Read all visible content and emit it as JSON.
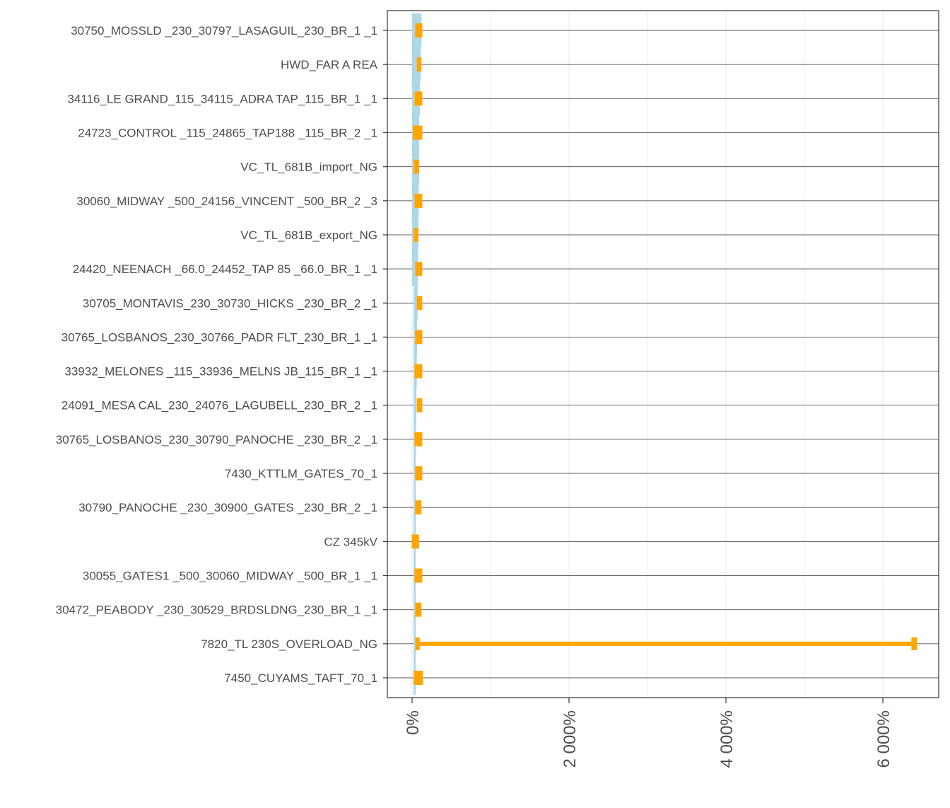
{
  "chart_data": {
    "type": "bar",
    "orientation": "horizontal",
    "style": "range-bars",
    "categories": [
      "30750_MOSSLD  _230_30797_LASAGUIL_230_BR_1 _1",
      "HWD_FAR A REA",
      "34116_LE GRAND_115_34115_ADRA TAP_115_BR_1 _1",
      "24723_CONTROL _115_24865_TAP188  _115_BR_2 _1",
      "VC_TL_681B_import_NG",
      "30060_MIDWAY  _500_24156_VINCENT _500_BR_2 _3",
      "VC_TL_681B_export_NG",
      "24420_NEENACH _66.0_24452_TAP 85  _66.0_BR_1 _1",
      "30705_MONTAVIS_230_30730_HICKS   _230_BR_2 _1",
      "30765_LOSBANOS_230_30766_PADR FLT_230_BR_1 _1",
      "33932_MELONES _115_33936_MELNS JB_115_BR_1 _1",
      "24091_MESA CAL_230_24076_LAGUBELL_230_BR_2 _1",
      "30765_LOSBANOS_230_30790_PANOCHE _230_BR_2 _1",
      "7430_KTTLM_GATES_70_1",
      "30790_PANOCHE _230_30900_GATES   _230_BR_2 _1",
      "CZ 345kV",
      "30055_GATES1  _500_30060_MIDWAY  _500_BR_1 _1",
      "30472_PEABODY _230_30529_BRDSLDNG_230_BR_1 _1",
      "7820_TL 230S_OVERLOAD_NG",
      "7450_CUYAMS_TAFT_70_1"
    ],
    "series": [
      {
        "color": "#add8e6",
        "low": [
          0,
          0,
          0,
          0,
          0,
          0,
          0,
          0,
          20,
          20,
          20,
          20,
          20,
          20,
          20,
          20,
          20,
          20,
          20,
          20
        ],
        "high": [
          120,
          110,
          100,
          90,
          90,
          85,
          80,
          75,
          70,
          65,
          60,
          55,
          50,
          45,
          40,
          35,
          35,
          30,
          30,
          30
        ]
      },
      {
        "color": "#ffa500",
        "low": [
          40,
          60,
          30,
          10,
          20,
          30,
          20,
          40,
          60,
          40,
          30,
          60,
          30,
          40,
          40,
          -5,
          30,
          40,
          70,
          20
        ],
        "high": [
          130,
          120,
          130,
          130,
          90,
          130,
          80,
          130,
          130,
          130,
          130,
          130,
          130,
          130,
          120,
          90,
          130,
          120,
          6400,
          140
        ]
      }
    ],
    "x_ticks": [
      "0%",
      "2 000%",
      "4 000%",
      "6 000%"
    ],
    "x_tick_values": [
      0,
      2000,
      4000,
      6000
    ],
    "xlim": [
      -300,
      6700
    ],
    "xlabel": "",
    "ylabel": "",
    "grid": true,
    "legend": "none"
  }
}
